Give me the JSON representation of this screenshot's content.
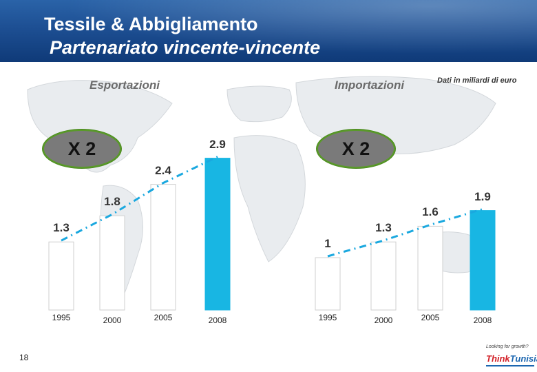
{
  "header": {
    "title": "Tessile & Abbigliamento",
    "subtitle": "Partenariato vincente-vincente"
  },
  "units_note": "Dati in miliardi di euro",
  "page_number": "18",
  "logo": {
    "tagline": "Looking for growth?",
    "brand_part1": "Think",
    "brand_part2": "Tunisia"
  },
  "colors": {
    "bar": "#ffffff",
    "highlight": "#18b6e3",
    "trend": "#1aa8df",
    "badge": "#7a7a7a"
  },
  "chart_data": [
    {
      "type": "bar",
      "title": "Esportazioni",
      "categories": [
        "1995",
        "2000",
        "2005",
        "2008"
      ],
      "values": [
        1.3,
        1.8,
        2.4,
        2.9
      ],
      "value_labels": [
        "1.3",
        "1.8",
        "2.4",
        "2.9"
      ],
      "highlight_index": 3,
      "multiplier_label": "X 2",
      "trend_line": true
    },
    {
      "type": "bar",
      "title": "Importazioni",
      "categories": [
        "1995",
        "2000",
        "2005",
        "2008"
      ],
      "values": [
        1.0,
        1.3,
        1.6,
        1.9
      ],
      "value_labels": [
        "1",
        "1.3",
        "1.6",
        "1.9"
      ],
      "highlight_index": 3,
      "multiplier_label": "X 2",
      "trend_line": true
    }
  ]
}
